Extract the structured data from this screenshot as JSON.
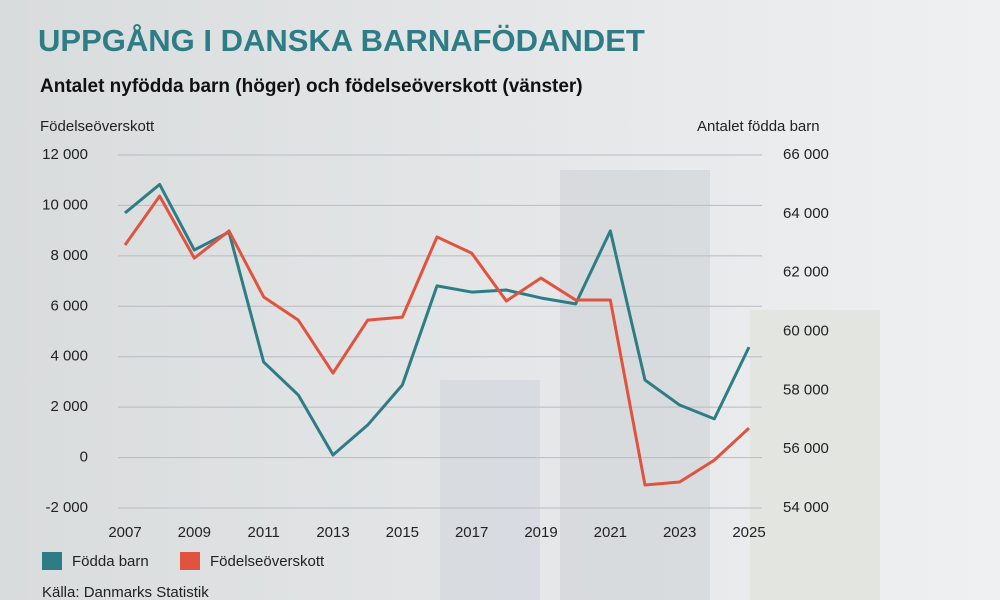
{
  "chart_data": {
    "type": "line",
    "title": "UPPGÅNG I DANSKA BARNAFÖDANDET",
    "subtitle": "Antalet nyfödda barn (höger) och födelseöverskott (vänster)",
    "y_label": "Födelseöverskott",
    "y2_label": "Antalet födda barn",
    "source": "Källa: Danmarks Statistik",
    "x": [
      2007,
      2008,
      2009,
      2010,
      2011,
      2012,
      2013,
      2014,
      2015,
      2016,
      2017,
      2018,
      2019,
      2020,
      2021,
      2022,
      2023,
      2024,
      2025
    ],
    "xlim": [
      2007,
      2025
    ],
    "xticks": [
      2007,
      2009,
      2011,
      2013,
      2015,
      2017,
      2019,
      2021,
      2023,
      2025
    ],
    "ylim": [
      -2000,
      12000
    ],
    "yticks": [
      {
        "value": -2000,
        "label": "-2 000"
      },
      0,
      {
        "value": 2000,
        "label": "2 000"
      },
      {
        "value": 4000,
        "label": "4 000"
      },
      {
        "value": 6000,
        "label": "6 000"
      },
      {
        "value": 8000,
        "label": "8 000"
      },
      {
        "value": 10000,
        "label": "10 000"
      },
      {
        "value": 12000,
        "label": "12 000"
      }
    ],
    "y2lim": [
      54000,
      66000
    ],
    "y2ticks": [
      {
        "value": 54000,
        "label": "54 000"
      },
      {
        "value": 56000,
        "label": "56 000"
      },
      {
        "value": 58000,
        "label": "58 000"
      },
      {
        "value": 60000,
        "label": "60 000"
      },
      {
        "value": 62000,
        "label": "62 000"
      },
      {
        "value": 64000,
        "label": "64 000"
      },
      {
        "value": 66000,
        "label": "66 000"
      }
    ],
    "grid": true,
    "series": [
      {
        "name": "Födda barn",
        "color": "#2e7d86",
        "axis": "y2",
        "values": [
          64030,
          65000,
          62770,
          63380,
          58960,
          57840,
          55800,
          56820,
          58180,
          61550,
          61340,
          61410,
          61140,
          60940,
          63420,
          58350,
          57500,
          57030,
          59470
        ]
      },
      {
        "name": "Födelseöverskott",
        "color": "#e0533f",
        "values": [
          8430,
          10370,
          7910,
          8990,
          6370,
          5450,
          3350,
          5450,
          5570,
          8750,
          8110,
          6210,
          7120,
          6250,
          6250,
          -1090,
          -970,
          -100,
          1170
        ]
      }
    ]
  }
}
